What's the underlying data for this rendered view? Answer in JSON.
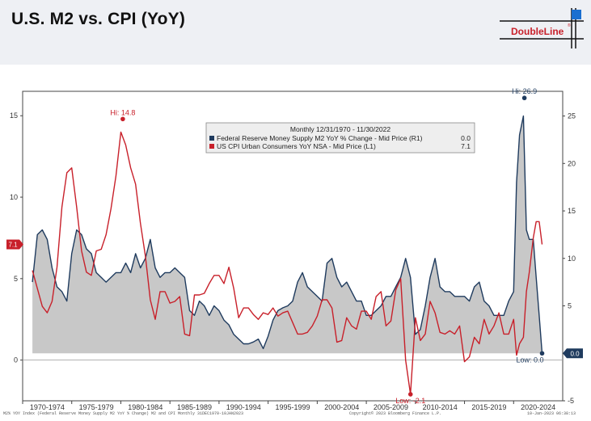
{
  "header": {
    "title": "U.S. M2 vs. CPI (YoY)",
    "logo_text": "DoubleLine",
    "logo_mark": "®"
  },
  "footer": {
    "source_note": "M2% YOY Index (Federal Reserve Money Supply M2 YoY % Change) M2 and CPI  Monthly 31DEC1970-10JAN2023",
    "copyright": "Copyright© 2023 Bloomberg Finance L.P.",
    "timestamp": "10-Jan-2023 06:38:13"
  },
  "colors": {
    "m2_line": "#1f3b5e",
    "m2_fill": "#c8c8c8",
    "cpi_line": "#c8202a",
    "header_bg": "#eef0f4"
  },
  "chart_data": {
    "type": "line",
    "legend": {
      "heading": "Monthly 12/31/1970 - 11/30/2022",
      "items": [
        {
          "label": "Federal Reserve Money Supply M2 YoY % Change - Mid Price (R1)",
          "value": "0.0",
          "color": "#1f3b5e"
        },
        {
          "label": "US CPI Urban Consumers YoY NSA - Mid Price (L1)",
          "value": "7.1",
          "color": "#c8202a"
        }
      ],
      "placement": "top-center"
    },
    "x_axis": {
      "range": [
        1970,
        2025
      ],
      "tick_labels": [
        {
          "label": "1970-1974",
          "x": 1972.5
        },
        {
          "label": "1975-1979",
          "x": 1977.5
        },
        {
          "label": "1980-1984",
          "x": 1982.5
        },
        {
          "label": "1985-1989",
          "x": 1987.5
        },
        {
          "label": "1990-1994",
          "x": 1992.5
        },
        {
          "label": "1995-1999",
          "x": 1997.5
        },
        {
          "label": "2000-2004",
          "x": 2002.5
        },
        {
          "label": "2005-2009",
          "x": 2007.5
        },
        {
          "label": "2010-2014",
          "x": 2012.5
        },
        {
          "label": "2015-2019",
          "x": 2017.5
        },
        {
          "label": "2020-2024",
          "x": 2022.5
        }
      ]
    },
    "y_left": {
      "series": "US CPI Urban Consumers YoY NSA",
      "range": [
        -2.5,
        16.5
      ],
      "ticks": [
        "0",
        "5",
        "10",
        "15"
      ]
    },
    "y_right": {
      "series": "Federal Reserve Money Supply M2 YoY % Change",
      "range": [
        -5,
        27.6
      ],
      "ticks": [
        "-5",
        "0",
        "5",
        "10",
        "15",
        "20",
        "25"
      ]
    },
    "series": [
      {
        "name": "Federal Reserve Money Supply M2 YoY % Change",
        "axis": "right",
        "style": "line-with-area",
        "x": [
          1971.0,
          1971.5,
          1972.0,
          1972.5,
          1973.0,
          1973.5,
          1974.0,
          1974.5,
          1975.0,
          1975.5,
          1976.0,
          1976.5,
          1977.0,
          1977.5,
          1978.0,
          1978.5,
          1979.0,
          1979.5,
          1980.0,
          1980.5,
          1981.0,
          1981.5,
          1982.0,
          1982.5,
          1983.0,
          1983.5,
          1984.0,
          1984.5,
          1985.0,
          1985.5,
          1986.0,
          1986.5,
          1987.0,
          1987.5,
          1988.0,
          1988.5,
          1989.0,
          1989.5,
          1990.0,
          1990.5,
          1991.0,
          1991.5,
          1992.0,
          1992.5,
          1993.0,
          1993.5,
          1994.0,
          1994.5,
          1995.0,
          1995.5,
          1996.0,
          1996.5,
          1997.0,
          1997.5,
          1998.0,
          1998.5,
          1999.0,
          1999.5,
          2000.0,
          2000.5,
          2001.0,
          2001.5,
          2002.0,
          2002.5,
          2003.0,
          2003.5,
          2004.0,
          2004.5,
          2005.0,
          2005.5,
          2006.0,
          2006.5,
          2007.0,
          2007.5,
          2008.0,
          2008.5,
          2009.0,
          2009.5,
          2010.0,
          2010.5,
          2011.0,
          2011.5,
          2012.0,
          2012.5,
          2013.0,
          2013.5,
          2014.0,
          2014.5,
          2015.0,
          2015.5,
          2016.0,
          2016.5,
          2017.0,
          2017.5,
          2018.0,
          2018.5,
          2019.0,
          2019.5,
          2020.0,
          2020.3,
          2020.6,
          2021.0,
          2021.3,
          2021.6,
          2022.0,
          2022.3,
          2022.6,
          2022.9
        ],
        "values": [
          7.5,
          12.5,
          13.0,
          12.0,
          9.0,
          7.0,
          6.5,
          5.5,
          10.5,
          13.0,
          12.5,
          11.0,
          10.5,
          8.5,
          8.0,
          7.5,
          8.0,
          8.5,
          8.5,
          9.5,
          8.5,
          10.5,
          9.0,
          10.0,
          12.0,
          9.0,
          8.0,
          8.5,
          8.5,
          9.0,
          8.5,
          8.0,
          4.5,
          4.0,
          5.5,
          5.0,
          4.0,
          5.0,
          4.5,
          3.5,
          3.0,
          2.0,
          1.5,
          1.0,
          1.0,
          1.2,
          1.5,
          0.5,
          1.8,
          3.5,
          4.5,
          4.8,
          5.0,
          5.5,
          7.5,
          8.5,
          7.0,
          6.5,
          6.0,
          5.5,
          9.5,
          10.0,
          8.0,
          7.0,
          7.5,
          6.5,
          5.5,
          5.5,
          4.0,
          4.0,
          4.5,
          5.0,
          6.0,
          6.0,
          7.0,
          8.0,
          10.0,
          8.0,
          2.0,
          2.5,
          5.0,
          8.0,
          10.0,
          7.0,
          6.5,
          6.5,
          6.0,
          6.0,
          6.0,
          5.5,
          7.0,
          7.5,
          5.5,
          5.0,
          4.0,
          4.0,
          4.0,
          5.5,
          6.5,
          18.0,
          23.0,
          25.0,
          13.0,
          12.0,
          12.0,
          8.0,
          4.0,
          0.0
        ]
      },
      {
        "name": "US CPI Urban Consumers YoY NSA",
        "axis": "left",
        "style": "line",
        "x": [
          1971.0,
          1971.5,
          1972.0,
          1972.5,
          1973.0,
          1973.5,
          1974.0,
          1974.5,
          1975.0,
          1975.5,
          1976.0,
          1976.5,
          1977.0,
          1977.5,
          1978.0,
          1978.5,
          1979.0,
          1979.5,
          1980.0,
          1980.5,
          1981.0,
          1981.5,
          1982.0,
          1982.5,
          1983.0,
          1983.5,
          1984.0,
          1984.5,
          1985.0,
          1985.5,
          1986.0,
          1986.5,
          1987.0,
          1987.5,
          1988.0,
          1988.5,
          1989.0,
          1989.5,
          1990.0,
          1990.5,
          1991.0,
          1991.5,
          1992.0,
          1992.5,
          1993.0,
          1993.5,
          1994.0,
          1994.5,
          1995.0,
          1995.5,
          1996.0,
          1996.5,
          1997.0,
          1997.5,
          1998.0,
          1998.5,
          1999.0,
          1999.5,
          2000.0,
          2000.5,
          2001.0,
          2001.5,
          2002.0,
          2002.5,
          2003.0,
          2003.5,
          2004.0,
          2004.5,
          2005.0,
          2005.5,
          2006.0,
          2006.5,
          2007.0,
          2007.5,
          2008.0,
          2008.5,
          2009.0,
          2009.5,
          2010.0,
          2010.5,
          2011.0,
          2011.5,
          2012.0,
          2012.5,
          2013.0,
          2013.5,
          2014.0,
          2014.5,
          2015.0,
          2015.5,
          2016.0,
          2016.5,
          2017.0,
          2017.5,
          2018.0,
          2018.5,
          2019.0,
          2019.5,
          2020.0,
          2020.3,
          2020.6,
          2021.0,
          2021.3,
          2021.6,
          2022.0,
          2022.3,
          2022.6,
          2022.9
        ],
        "values": [
          5.5,
          4.4,
          3.3,
          2.9,
          3.6,
          5.7,
          9.4,
          11.5,
          11.8,
          9.4,
          6.7,
          5.4,
          5.2,
          6.7,
          6.8,
          7.7,
          9.3,
          11.3,
          14.0,
          13.2,
          11.8,
          10.8,
          8.4,
          6.4,
          3.7,
          2.5,
          4.2,
          4.2,
          3.5,
          3.6,
          3.9,
          1.6,
          1.5,
          4.0,
          4.0,
          4.1,
          4.7,
          5.2,
          5.2,
          4.7,
          5.7,
          4.4,
          2.6,
          3.2,
          3.2,
          2.8,
          2.5,
          2.9,
          2.8,
          3.2,
          2.7,
          2.9,
          3.0,
          2.3,
          1.6,
          1.6,
          1.7,
          2.1,
          2.7,
          3.7,
          3.7,
          3.2,
          1.1,
          1.2,
          2.6,
          2.1,
          1.9,
          3.0,
          3.0,
          2.5,
          3.9,
          4.2,
          2.1,
          2.4,
          4.3,
          5.0,
          0.0,
          -2.1,
          2.6,
          1.2,
          1.6,
          3.6,
          2.9,
          1.7,
          1.6,
          1.8,
          1.6,
          2.1,
          -0.1,
          0.2,
          1.4,
          1.0,
          2.5,
          1.6,
          2.1,
          2.9,
          1.6,
          1.6,
          2.5,
          0.3,
          1.0,
          1.4,
          4.2,
          5.4,
          7.5,
          8.5,
          8.5,
          7.1
        ]
      }
    ],
    "annotations": [
      {
        "text": "Hi: 14.8",
        "x": 1980.2,
        "y": 14.8,
        "axis": "left",
        "color": "#c8202a"
      },
      {
        "text": "Low: -2.1",
        "x": 2009.5,
        "y": -2.1,
        "axis": "left",
        "color": "#c8202a"
      },
      {
        "text": "Hi: 26.9",
        "x": 2021.1,
        "y": 26.9,
        "axis": "right",
        "color": "#1f3b5e"
      },
      {
        "text": "Low: 0.0",
        "x": 2022.9,
        "y": 0.0,
        "axis": "right",
        "color": "#1f3b5e"
      }
    ],
    "last_value_tags": [
      {
        "text": "7.1",
        "axis": "left",
        "y": 7.1,
        "color": "#c8202a"
      },
      {
        "text": "0.0",
        "axis": "right",
        "y": 0.0,
        "color": "#1f3b5e"
      }
    ],
    "grid": false
  }
}
